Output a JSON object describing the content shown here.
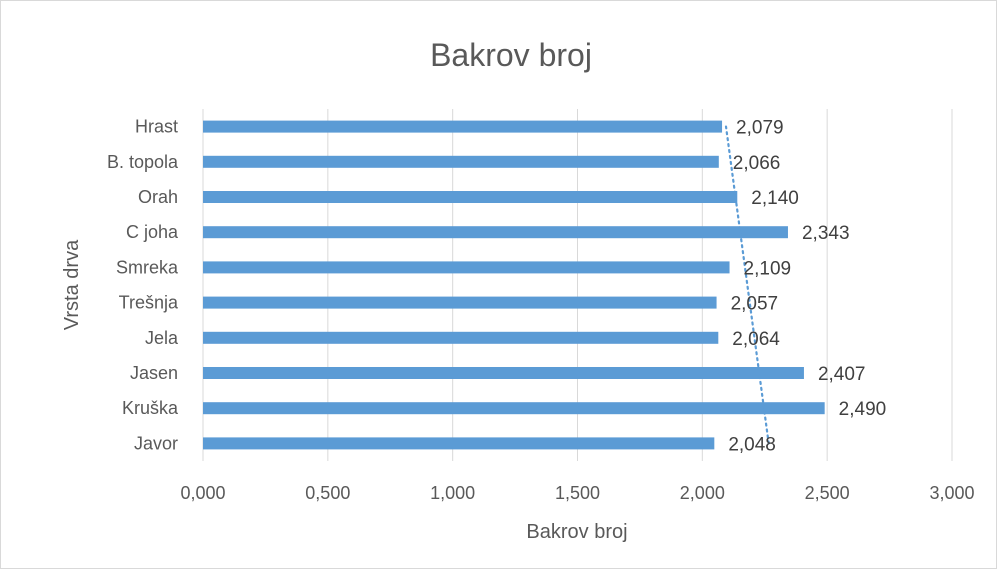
{
  "chart_data": {
    "type": "bar",
    "orientation": "horizontal",
    "title": "Bakrov broj",
    "xlabel": "Bakrov broj",
    "ylabel": "Vrsta drva",
    "categories": [
      "Javor",
      "Kruška",
      "Jasen",
      "Jela",
      "Trešnja",
      "Smreka",
      "C joha",
      "Orah",
      "B. topola",
      "Hrast"
    ],
    "values": [
      2.048,
      2.49,
      2.407,
      2.064,
      2.057,
      2.109,
      2.343,
      2.14,
      2.066,
      2.079
    ],
    "data_labels": [
      "2,048",
      "2,490",
      "2,407",
      "2,064",
      "2,057",
      "2,109",
      "2,343",
      "2,140",
      "2,066",
      "2,079"
    ],
    "xlim": [
      0,
      3
    ],
    "x_ticks": [
      0,
      0.5,
      1,
      1.5,
      2,
      2.5,
      3
    ],
    "x_tick_labels": [
      "0,000",
      "0,500",
      "1,000",
      "1,500",
      "2,000",
      "2,500",
      "3,000"
    ],
    "grid": true,
    "legend": "none",
    "trendline": {
      "type": "linear",
      "style": "dotted"
    },
    "colors": {
      "bar": "#5b9bd5",
      "gridline": "#d9d9d9",
      "text": "#595959",
      "trendline": "#5b9bd5"
    }
  }
}
